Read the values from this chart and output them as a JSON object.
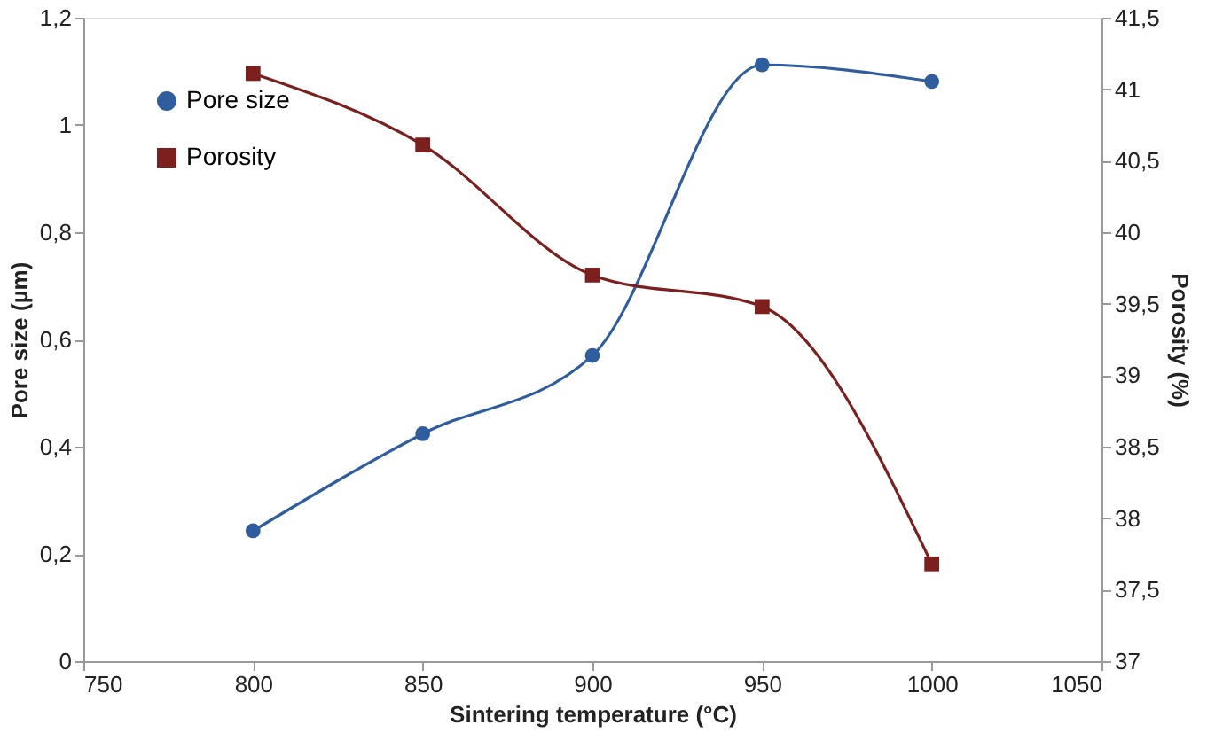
{
  "chart_data": {
    "type": "line",
    "xlabel": "Sintering temperature (°C)",
    "ylabel": "Pore size (µm)",
    "y2label": "Porosity (%)",
    "x": [
      800,
      850,
      900,
      950,
      1000
    ],
    "series": [
      {
        "name": "Pore size",
        "color": "#2f5d9e",
        "marker": "circle",
        "values": [
          0.243,
          0.424,
          0.57,
          1.112,
          1.081
        ]
      },
      {
        "name": "Porosity",
        "color": "#7b1f1f",
        "marker": "square",
        "axis": "y2",
        "values": [
          41.11,
          40.61,
          39.7,
          39.48,
          37.68
        ]
      }
    ],
    "xlim": [
      750,
      1050
    ],
    "xticks": [
      750,
      800,
      850,
      900,
      950,
      1000,
      1050
    ],
    "ylim": [
      0,
      1.2
    ],
    "yticks": [
      0,
      {
        "value": 0.2,
        "label": "0,2"
      },
      {
        "value": 0.4,
        "label": "0,4"
      },
      {
        "value": 0.6,
        "label": "0,6"
      },
      {
        "value": 0.8,
        "label": "0,8"
      },
      1,
      {
        "value": 1.2,
        "label": "1,2"
      }
    ],
    "y2lim": [
      37,
      41.5
    ],
    "y2ticks": [
      37,
      {
        "value": 37.5,
        "label": "37,5"
      },
      38,
      {
        "value": 38.5,
        "label": "38,5"
      },
      39,
      {
        "value": 39.5,
        "label": "39,5"
      },
      40,
      {
        "value": 40.5,
        "label": "40,5"
      },
      41,
      {
        "value": 41.5,
        "label": "41,5"
      }
    ],
    "grid": false,
    "legend": "top left",
    "line_style": "solid"
  }
}
